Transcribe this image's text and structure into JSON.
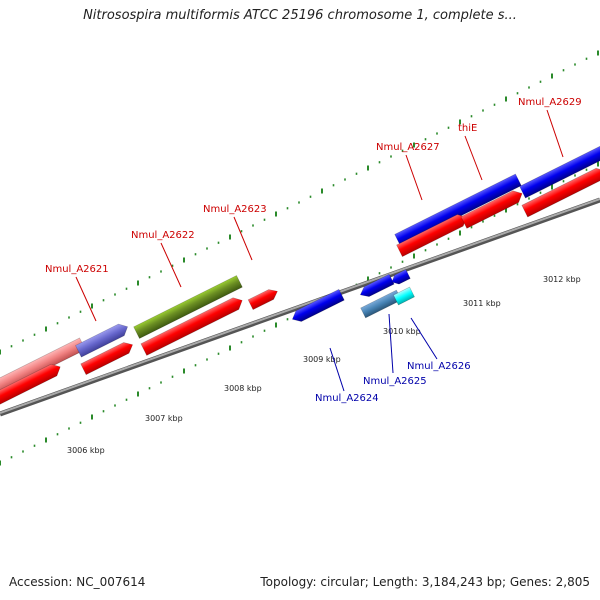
{
  "title": "Nitrosospira multiformis ATCC 25196 chromosome 1, complete s...",
  "footer": {
    "accession": "Accession: NC_007614",
    "topology": "Topology: circular; Length: 3,184,243 bp; Genes: 2,805"
  },
  "scale_labels": [
    "3006 kbp",
    "3007 kbp",
    "3008 kbp",
    "3009 kbp",
    "3010 kbp",
    "3011 kbp",
    "3012 kbp"
  ],
  "gene_labels_top": [
    "Nmul_A2621",
    "Nmul_A2622",
    "Nmul_A2623",
    "Nmul_A2627",
    "thiE",
    "Nmul_A2629"
  ],
  "gene_labels_bottom": [
    "Nmul_A2624",
    "Nmul_A2625",
    "Nmul_A2626"
  ],
  "colors": {
    "top_label": "#cc0000",
    "bottom_label": "#0000aa",
    "gene_red": "#ff0000",
    "gene_blue": "#0000ee",
    "gene_olive": "#6b8e23",
    "gene_pink": "#f08080",
    "gene_lavender": "#6666cc",
    "gene_cyan": "#00ffff",
    "gene_steel": "#4682b4",
    "tick_green": "#2a8a2a",
    "axis_gray": "#888888"
  }
}
